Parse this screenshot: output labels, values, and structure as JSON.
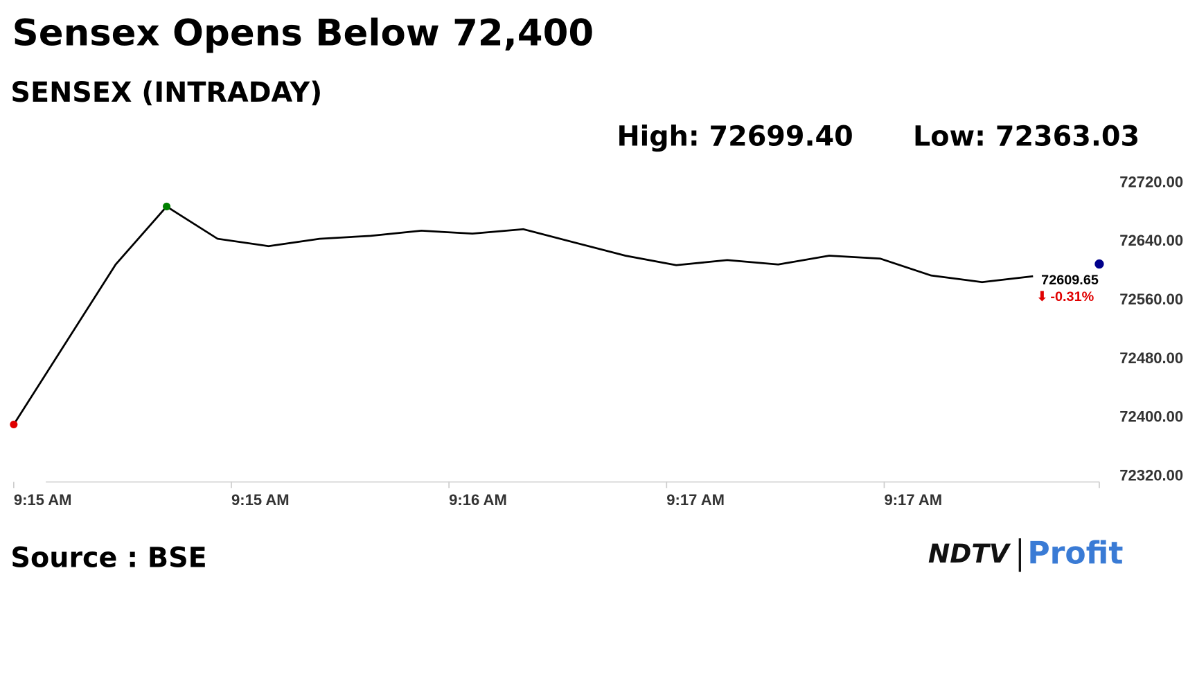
{
  "chart_data": {
    "type": "line",
    "title": "Sensex Opens Below 72,400",
    "subtitle": "SENSEX (INTRADAY)",
    "stats": [
      {
        "label": "High:",
        "value": "72699.40"
      },
      {
        "label": "Low:",
        "value": "72363.03"
      }
    ],
    "source": "Source : BSE",
    "logo": {
      "left": "NDTV",
      "right": "Profit"
    },
    "series": [
      {
        "color": "#000000",
        "x": [
          0,
          2,
          3,
          4,
          5,
          6,
          7,
          8,
          9,
          10,
          11,
          12,
          13,
          14,
          15,
          16,
          17,
          18,
          19,
          20
        ],
        "values": [
          72391,
          72609,
          72688,
          72644,
          72634,
          72644,
          72648,
          72655,
          72651,
          72657,
          72639,
          72621,
          72608,
          72615,
          72609,
          72621,
          72617,
          72594,
          72585,
          72593
        ]
      }
    ],
    "start_marker_color": "#e00000",
    "high_marker_color": "#008000",
    "last_value": 72609.65,
    "last_marker_color": "#00008b",
    "change": -0.31,
    "change_label": "-0.31%",
    "change_color": "#e00000",
    "xlim": [
      0,
      21.3
    ],
    "xticks": [
      {
        "value": 0,
        "label": "9:15 AM"
      },
      {
        "value": 4.27,
        "label": "9:15 AM"
      },
      {
        "value": 8.54,
        "label": "9:16 AM"
      },
      {
        "value": 12.81,
        "label": "9:17 AM"
      },
      {
        "value": 17.08,
        "label": "9:17 AM"
      }
    ],
    "ylim": [
      72320,
      72720
    ],
    "yticks": [
      {
        "value": 72720,
        "label": "72720.00"
      },
      {
        "value": 72640,
        "label": "72640.00"
      },
      {
        "value": 72560,
        "label": "72560.00"
      },
      {
        "value": 72480,
        "label": "72480.00"
      },
      {
        "value": 72400,
        "label": "72400.00"
      },
      {
        "value": 72320,
        "label": "72320.00"
      }
    ]
  }
}
